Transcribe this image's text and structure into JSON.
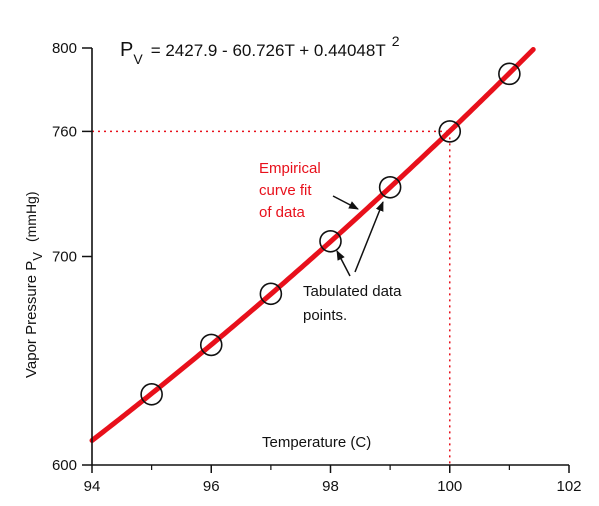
{
  "chart_data": {
    "type": "scatter",
    "equation": {
      "lhs_main": "P",
      "lhs_sub": "V",
      "rhs": "= 2427.9 - 60.726T + 0.44048T",
      "rhs_sup": "2"
    },
    "xlabel": "Temperature (C)",
    "ylabel": {
      "main": "Vapor Pressure  P",
      "sub": "V",
      "unit": "(mmHg)"
    },
    "xlim": [
      94,
      102
    ],
    "ylim": [
      600,
      800
    ],
    "x_ticks": [
      94,
      96,
      98,
      100,
      102
    ],
    "y_ticks": [
      600,
      700,
      760,
      800
    ],
    "y_tick_labels": [
      "600",
      "700",
      "760",
      "800"
    ],
    "series": [
      {
        "name": "Tabulated data points.",
        "x": [
          95,
          96,
          97,
          98,
          99,
          100,
          101
        ],
        "y": [
          633.9,
          657.6,
          682.1,
          707.3,
          733.2,
          760.0,
          787.6
        ]
      }
    ],
    "curve": {
      "name": "Empirical curve fit of data",
      "coefficients": [
        2427.9,
        -60.726,
        0.44048
      ],
      "x_range": [
        94,
        101.4
      ],
      "color": "#e8101b"
    },
    "reference": {
      "x": 100,
      "y": 760,
      "color": "#e8101b"
    },
    "annotations": {
      "curve_label": [
        "Empirical",
        "curve fit",
        "of data"
      ],
      "points_label": [
        "Tabulated data",
        "points."
      ]
    },
    "grid": false
  }
}
